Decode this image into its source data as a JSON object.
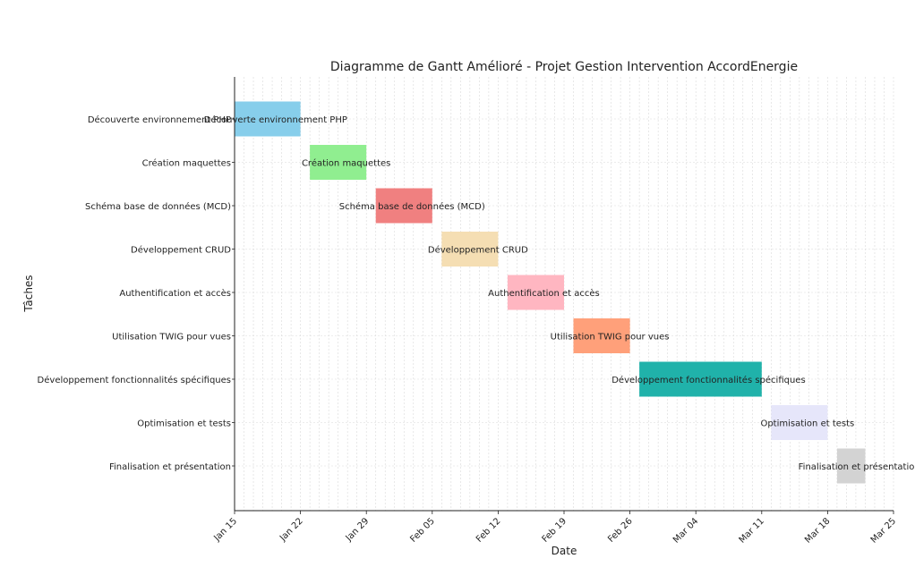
{
  "chart_data": {
    "type": "gantt",
    "title": "Diagramme de Gantt Amélioré - Projet Gestion Intervention AccordEnergie",
    "xlabel": "Date",
    "ylabel": "Tâches",
    "xlim": [
      "2024-01-15",
      "2024-03-25"
    ],
    "grid": true,
    "x_ticks": [
      "Jan 15",
      "Jan 22",
      "Jan 29",
      "Feb 05",
      "Feb 12",
      "Feb 19",
      "Feb 26",
      "Mar 04",
      "Mar 11",
      "Mar 18",
      "Mar 25"
    ],
    "tasks": [
      {
        "name": "Découverte environnement PHP",
        "start": "2024-01-15",
        "end": "2024-01-22",
        "color": "#87CEEB"
      },
      {
        "name": "Création maquettes",
        "start": "2024-01-23",
        "end": "2024-01-29",
        "color": "#90EE90"
      },
      {
        "name": "Schéma base de données (MCD)",
        "start": "2024-01-30",
        "end": "2024-02-05",
        "color": "#F08080"
      },
      {
        "name": "Développement CRUD",
        "start": "2024-02-06",
        "end": "2024-02-12",
        "color": "#F5DEB3"
      },
      {
        "name": "Authentification et accès",
        "start": "2024-02-13",
        "end": "2024-02-19",
        "color": "#FFB6C1"
      },
      {
        "name": "Utilisation TWIG pour vues",
        "start": "2024-02-20",
        "end": "2024-02-26",
        "color": "#FFA07A"
      },
      {
        "name": "Développement fonctionnalités spécifiques",
        "start": "2024-02-27",
        "end": "2024-03-11",
        "color": "#20B2AA"
      },
      {
        "name": "Optimisation et tests",
        "start": "2024-03-12",
        "end": "2024-03-18",
        "color": "#E6E6FA"
      },
      {
        "name": "Finalisation et présentation",
        "start": "2024-03-19",
        "end": "2024-03-22",
        "color": "#D3D3D3"
      }
    ]
  }
}
